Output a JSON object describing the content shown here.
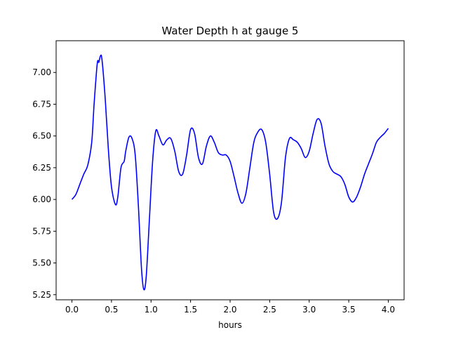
{
  "chart_data": {
    "type": "line",
    "title": "Water Depth h at gauge 5",
    "xlabel": "hours",
    "ylabel": "",
    "xlim": [
      -0.2,
      4.2
    ],
    "ylim": [
      5.21,
      7.25
    ],
    "xticks": [
      0.0,
      0.5,
      1.0,
      1.5,
      2.0,
      2.5,
      3.0,
      3.5,
      4.0
    ],
    "xtick_labels": [
      "0.0",
      "0.5",
      "1.0",
      "1.5",
      "2.0",
      "2.5",
      "3.0",
      "3.5",
      "4.0"
    ],
    "yticks": [
      5.25,
      5.5,
      5.75,
      6.0,
      6.25,
      6.5,
      6.75,
      7.0
    ],
    "ytick_labels": [
      "5.25",
      "5.50",
      "5.75",
      "6.00",
      "6.25",
      "6.50",
      "6.75",
      "7.00"
    ],
    "grid": false,
    "legend": "none",
    "series": [
      {
        "color": "#0000ff",
        "x": [
          0.0,
          0.05,
          0.1,
          0.15,
          0.2,
          0.25,
          0.28,
          0.32,
          0.34,
          0.36,
          0.38,
          0.42,
          0.46,
          0.5,
          0.55,
          0.58,
          0.62,
          0.66,
          0.68,
          0.72,
          0.76,
          0.8,
          0.84,
          0.88,
          0.91,
          0.94,
          0.98,
          1.02,
          1.06,
          1.1,
          1.15,
          1.2,
          1.25,
          1.3,
          1.35,
          1.4,
          1.45,
          1.5,
          1.55,
          1.6,
          1.65,
          1.7,
          1.75,
          1.8,
          1.85,
          1.9,
          1.95,
          2.0,
          2.05,
          2.1,
          2.15,
          2.2,
          2.25,
          2.3,
          2.35,
          2.4,
          2.45,
          2.5,
          2.55,
          2.6,
          2.65,
          2.7,
          2.75,
          2.8,
          2.85,
          2.9,
          2.95,
          3.0,
          3.05,
          3.1,
          3.15,
          3.2,
          3.25,
          3.3,
          3.35,
          3.4,
          3.45,
          3.5,
          3.55,
          3.6,
          3.65,
          3.7,
          3.75,
          3.8,
          3.85,
          3.9,
          3.95,
          4.0
        ],
        "y": [
          6.0,
          6.04,
          6.12,
          6.2,
          6.27,
          6.45,
          6.75,
          7.07,
          7.08,
          7.13,
          7.1,
          6.8,
          6.4,
          6.1,
          5.96,
          6.02,
          6.25,
          6.3,
          6.38,
          6.49,
          6.48,
          6.35,
          5.95,
          5.45,
          5.29,
          5.4,
          5.85,
          6.3,
          6.54,
          6.5,
          6.43,
          6.47,
          6.48,
          6.38,
          6.22,
          6.2,
          6.35,
          6.55,
          6.52,
          6.33,
          6.28,
          6.42,
          6.5,
          6.45,
          6.37,
          6.35,
          6.35,
          6.3,
          6.18,
          6.05,
          5.97,
          6.05,
          6.25,
          6.45,
          6.53,
          6.55,
          6.45,
          6.2,
          5.9,
          5.85,
          5.98,
          6.33,
          6.48,
          6.47,
          6.45,
          6.4,
          6.33,
          6.38,
          6.52,
          6.63,
          6.6,
          6.42,
          6.28,
          6.22,
          6.2,
          6.18,
          6.12,
          6.02,
          5.98,
          6.02,
          6.1,
          6.2,
          6.28,
          6.36,
          6.45,
          6.49,
          6.52,
          6.56
        ]
      }
    ]
  }
}
